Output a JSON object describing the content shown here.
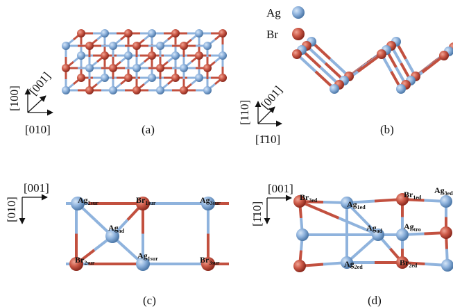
{
  "legend": [
    {
      "label": "Ag"
    },
    {
      "label": "Br"
    }
  ],
  "panels": [
    {
      "label": "(a)",
      "axes": [
        "[100]",
        "[001]",
        "[010]"
      ]
    },
    {
      "label": "(b)",
      "axes": [
        "[110]",
        "[001]",
        "[1̄10]"
      ]
    },
    {
      "label": "(c)",
      "axes": [
        "[001]",
        "[010]"
      ],
      "atoms": [
        {
          "main": "Ag",
          "sub": "2sur"
        },
        {
          "main": "Br",
          "sub": "1sur"
        },
        {
          "main": "Ag",
          "sub": "3sur"
        },
        {
          "main": "Ag",
          "sub": "ad"
        },
        {
          "main": "Br",
          "sub": "2sur"
        },
        {
          "main": "Ag",
          "sub": "1sur"
        },
        {
          "main": "Br",
          "sub": "3sur"
        }
      ]
    },
    {
      "label": "(d)",
      "axes": [
        "[001]",
        "[1̄10]"
      ],
      "atoms": [
        {
          "main": "Br",
          "sub": "3ed"
        },
        {
          "main": "Ag",
          "sub": "1ed"
        },
        {
          "main": "Br",
          "sub": "1ed"
        },
        {
          "main": "Ag",
          "sub": "3ed"
        },
        {
          "main": "Ag",
          "sub": "ad"
        },
        {
          "main": "Ag",
          "sub": "tro"
        },
        {
          "main": "Br",
          "sub": "2ed"
        },
        {
          "main": "Ag",
          "sub": "2ed"
        }
      ]
    }
  ]
}
